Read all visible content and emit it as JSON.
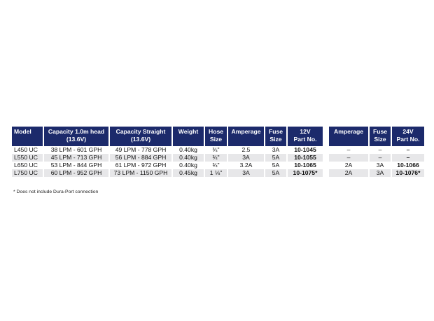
{
  "table": {
    "headers": {
      "model": "Model",
      "cap_head_1": "Capacity 1.0m head",
      "cap_head_2": "(13.6V)",
      "cap_straight_1": "Capacity Straight",
      "cap_straight_2": "(13.6V)",
      "weight": "Weight",
      "hose_1": "Hose",
      "hose_2": "Size",
      "amperage12": "Amperage",
      "fuse12_1": "Fuse",
      "fuse12_2": "Size",
      "part12_1": "12V",
      "part12_2": "Part No.",
      "amperage24": "Amperage",
      "fuse24_1": "Fuse",
      "fuse24_2": "Size",
      "part24_1": "24V",
      "part24_2": "Part No."
    },
    "rows": [
      {
        "model": "L450 UC",
        "cap_head": "38 LPM - 601 GPH",
        "cap_straight": "49 LPM - 778 GPH",
        "weight": "0.40kg",
        "hose": "¾\"",
        "amp12": "2.5",
        "fuse12": "3A",
        "part12": "10-1045",
        "amp24": "–",
        "fuse24": "–",
        "part24": "–"
      },
      {
        "model": "L550 UC",
        "cap_head": "45 LPM - 713 GPH",
        "cap_straight": "56 LPM - 884 GPH",
        "weight": "0.40kg",
        "hose": "¾\"",
        "amp12": "3A",
        "fuse12": "5A",
        "part12": "10-1055",
        "amp24": "–",
        "fuse24": "–",
        "part24": "–"
      },
      {
        "model": "L650 UC",
        "cap_head": "53 LPM - 844 GPH",
        "cap_straight": "61 LPM - 972 GPH",
        "weight": "0.40kg",
        "hose": "¾\"",
        "amp12": "3.2A",
        "fuse12": "5A",
        "part12": "10-1065",
        "amp24": "2A",
        "fuse24": "3A",
        "part24": "10-1066"
      },
      {
        "model": "L750 UC",
        "cap_head": "60 LPM - 952 GPH",
        "cap_straight": "73 LPM - 1150 GPH",
        "weight": "0.45kg",
        "hose": "1 ⅛\"",
        "amp12": "3A",
        "fuse12": "5A",
        "part12": "10-1075*",
        "amp24": "2A",
        "fuse24": "3A",
        "part24": "10-1076*"
      }
    ]
  },
  "footnote": "* Does not include Dura-Port connection",
  "colors": {
    "header_bg": "#1c2a6b",
    "row_shade": "#e7e7e9"
  }
}
